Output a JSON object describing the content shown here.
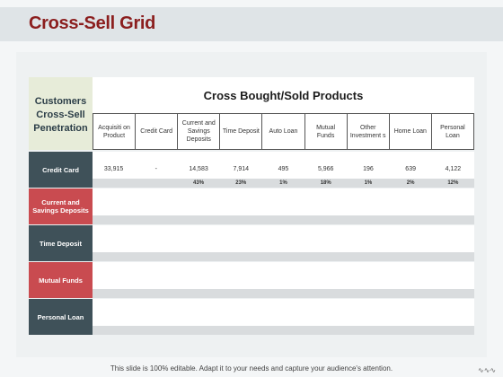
{
  "slide": {
    "title": "Cross-Sell Grid",
    "corner_label": "Customers\nCross-Sell\nPenetration",
    "header_title": "Cross Bought/Sold Products",
    "columns": [
      "Acquisiti on Product",
      "Credit Card",
      "Current and Savings Deposits",
      "Time Deposit",
      "Auto Loan",
      "Mutual Funds",
      "Other Investment s",
      "Home Loan",
      "Personal Loan"
    ],
    "rows": [
      {
        "label": "Credit Card",
        "style": "dark",
        "values": [
          "33,915",
          "-",
          "14,583",
          "7,914",
          "495",
          "5,966",
          "196",
          "639",
          "4,122"
        ],
        "percents": [
          "",
          "",
          "43%",
          "23%",
          "1%",
          "18%",
          "1%",
          "2%",
          "12%"
        ]
      },
      {
        "label": "Current and Savings Deposits",
        "style": "red",
        "values": [],
        "percents": []
      },
      {
        "label": "Time Deposit",
        "style": "dark",
        "values": [],
        "percents": []
      },
      {
        "label": "Mutual Funds",
        "style": "red",
        "values": [],
        "percents": []
      },
      {
        "label": "Personal Loan",
        "style": "dark",
        "values": [],
        "percents": []
      }
    ],
    "footer": "This slide is 100% editable. Adapt it to your needs and capture your audience's attention.",
    "colors": {
      "title": "#8b1e1e",
      "row_dark": "#3f5159",
      "row_red": "#c94b50",
      "corner_bg": "#e7ecd9"
    }
  }
}
